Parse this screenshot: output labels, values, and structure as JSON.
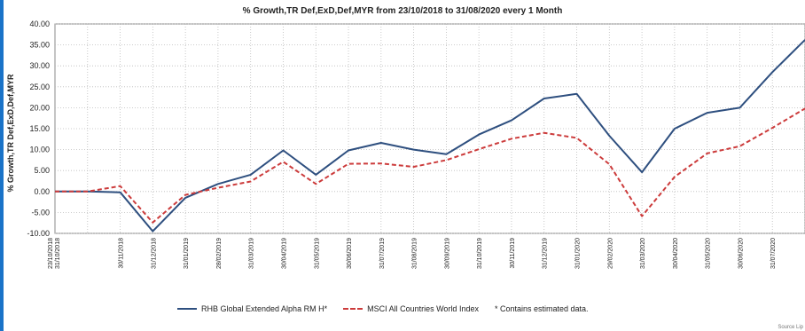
{
  "chart_data": {
    "type": "line",
    "title": "% Growth,TR Def,ExD,Def,MYR from 23/10/2018 to 31/08/2020 every 1 Month",
    "ylabel": "% Growth,TR Def,ExD,Def,MYR",
    "xlabel": "",
    "ylim": [
      -10,
      40
    ],
    "yticks": [
      "40.00",
      "35.00",
      "30.00",
      "25.00",
      "20.00",
      "15.00",
      "10.00",
      "5.00",
      "0.00",
      "-5.00",
      "-10.00"
    ],
    "grid": true,
    "categories": [
      "23/10/2018",
      "31/10/2018",
      "30/11/2018",
      "31/12/2018",
      "31/01/2019",
      "28/02/2019",
      "31/03/2019",
      "30/04/2019",
      "31/05/2019",
      "30/06/2019",
      "31/07/2019",
      "31/08/2019",
      "30/09/2019",
      "31/10/2019",
      "30/11/2019",
      "31/12/2019",
      "31/01/2020",
      "29/02/2020",
      "31/03/2020",
      "30/04/2020",
      "31/05/2020",
      "30/06/2020",
      "31/07/2020",
      "31/08/2020"
    ],
    "tick_labels": [
      "23/10/2018\n31/10/2018",
      "30/11/2018",
      "31/12/2018",
      "31/01/2019",
      "28/02/2019",
      "31/03/2019",
      "30/04/2019",
      "31/05/2019",
      "30/06/2019",
      "31/07/2019",
      "31/08/2019",
      "30/09/2019",
      "31/10/2019",
      "30/11/2019",
      "31/12/2019",
      "31/01/2020",
      "29/02/2020",
      "31/03/2020",
      "30/04/2020",
      "31/05/2020",
      "30/06/2020",
      "31/07/2020"
    ],
    "series": [
      {
        "name": "RHB Global Extended Alpha RM H*",
        "color": "#2e4f7f",
        "style": "solid",
        "values": [
          0.0,
          0.0,
          -0.2,
          -9.5,
          -1.5,
          1.8,
          4.0,
          9.8,
          4.0,
          9.8,
          11.6,
          10.0,
          8.9,
          13.6,
          17.0,
          22.2,
          23.3,
          13.3,
          4.6,
          15.0,
          18.8,
          20.0,
          28.5,
          36.2
        ]
      },
      {
        "name": "MSCI All Countries World Index",
        "color": "#cc3b3b",
        "style": "dashed",
        "values": [
          0.0,
          0.0,
          1.3,
          -7.4,
          -0.8,
          0.9,
          2.4,
          7.1,
          1.8,
          6.6,
          6.7,
          5.9,
          7.5,
          10.1,
          12.6,
          14.0,
          12.8,
          6.5,
          -5.9,
          3.5,
          9.1,
          10.8,
          15.2,
          19.8
        ]
      }
    ],
    "legend_placement": "bottom",
    "note": "* Contains estimated data."
  },
  "source_text": "Source Lip"
}
